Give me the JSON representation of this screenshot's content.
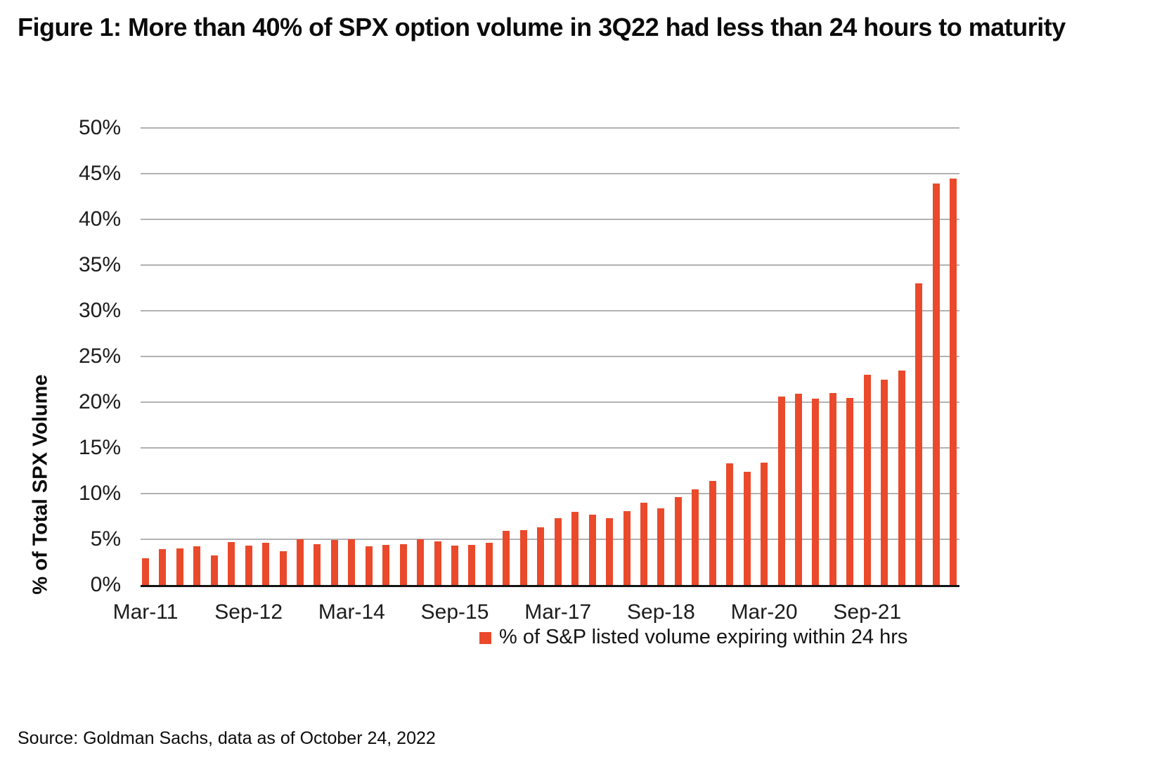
{
  "figure": {
    "title": "Figure 1: More than 40% of SPX option volume in 3Q22 had less than 24 hours to maturity",
    "source": "Source: Goldman Sachs, data as of October 24, 2022"
  },
  "chart_data": {
    "type": "bar",
    "title": "Figure 1: More than 40% of SPX option volume in 3Q22 had less than 24 hours to maturity",
    "xlabel": "",
    "ylabel": "% of Total SPX Volume",
    "ylim": [
      0,
      50
    ],
    "ytick_step": 5,
    "ytick_suffix": "%",
    "grid": true,
    "bar_color": "#EA4A2B",
    "gridline_color": "#b2b2b2",
    "x_label_every": 6,
    "x_axis_labels": [
      "Mar-11",
      "Sep-12",
      "Mar-14",
      "Sep-15",
      "Mar-17",
      "Sep-18",
      "Mar-20",
      "Sep-21"
    ],
    "legend": {
      "label": "% of S&P listed volume expiring within 24 hrs",
      "position": "bottom",
      "marker_color": "#EA4A2B"
    },
    "categories": [
      "Mar-11",
      "Jun-11",
      "Sep-11",
      "Dec-11",
      "Mar-12",
      "Jun-12",
      "Sep-12",
      "Dec-12",
      "Mar-13",
      "Jun-13",
      "Sep-13",
      "Dec-13",
      "Mar-14",
      "Jun-14",
      "Sep-14",
      "Dec-14",
      "Mar-15",
      "Jun-15",
      "Sep-15",
      "Dec-15",
      "Mar-16",
      "Jun-16",
      "Sep-16",
      "Dec-16",
      "Mar-17",
      "Jun-17",
      "Sep-17",
      "Dec-17",
      "Mar-18",
      "Jun-18",
      "Sep-18",
      "Dec-18",
      "Mar-19",
      "Jun-19",
      "Sep-19",
      "Dec-19",
      "Mar-20",
      "Jun-20",
      "Sep-20",
      "Dec-20",
      "Mar-21",
      "Jun-21",
      "Sep-21",
      "Dec-21",
      "Mar-22",
      "Jun-22",
      "Sep-22",
      "Dec-22"
    ],
    "values": [
      2.9,
      3.9,
      4.0,
      4.2,
      3.2,
      4.7,
      4.3,
      4.6,
      3.7,
      5.0,
      4.5,
      4.9,
      5.0,
      4.2,
      4.4,
      4.5,
      5.0,
      4.8,
      4.3,
      4.4,
      4.6,
      5.9,
      6.0,
      6.3,
      7.3,
      8.0,
      7.7,
      7.3,
      8.1,
      9.0,
      8.4,
      9.6,
      10.5,
      11.4,
      13.3,
      12.4,
      13.4,
      20.6,
      20.9,
      20.4,
      21.0,
      20.5,
      23.0,
      22.5,
      23.5,
      33.0,
      43.9,
      44.5
    ]
  }
}
